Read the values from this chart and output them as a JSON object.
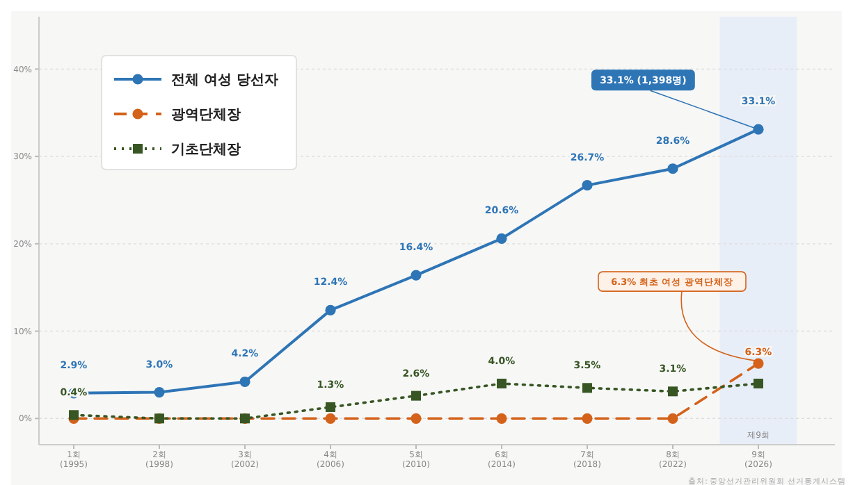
{
  "chart_data": {
    "type": "line",
    "categories": [
      "1회\n(1995)",
      "2회\n(1998)",
      "3회\n(2002)",
      "4회\n(2006)",
      "5회\n(2010)",
      "6회\n(2014)",
      "7회\n(2018)",
      "8회\n(2022)",
      "9회\n(2026)"
    ],
    "series": [
      {
        "name": "전체 여성 당선자",
        "color": "#2e75b6",
        "marker": "circle",
        "line_style": "solid",
        "values": [
          2.9,
          3.0,
          4.2,
          12.4,
          16.4,
          20.6,
          26.7,
          28.6,
          33.1
        ],
        "value_labels": [
          "2.9%",
          "3.0%",
          "4.2%",
          "12.4%",
          "16.4%",
          "20.6%",
          "26.7%",
          "28.6%",
          "33.1%"
        ]
      },
      {
        "name": "광역단체장",
        "color": "#d4621a",
        "marker": "circle",
        "line_style": "dashed",
        "values": [
          0,
          0,
          0,
          0,
          0,
          0,
          0,
          0,
          6.3
        ],
        "value_labels": [
          null,
          null,
          null,
          null,
          null,
          null,
          null,
          null,
          "6.3%"
        ]
      },
      {
        "name": "기초단체장",
        "color": "#375623",
        "marker": "square",
        "line_style": "dotted",
        "values": [
          0.4,
          0,
          0,
          1.3,
          2.6,
          4.0,
          3.5,
          3.1,
          4.0
        ],
        "value_labels": [
          "0.4%",
          null,
          null,
          "1.3%",
          "2.6%",
          "4.0%",
          "3.5%",
          "3.1%",
          null
        ]
      }
    ],
    "ylim": [
      -3,
      46
    ],
    "yticks": [
      {
        "value": 0,
        "label": "0%"
      },
      {
        "value": 10,
        "label": "10%"
      },
      {
        "value": 20,
        "label": "20%"
      },
      {
        "value": 30,
        "label": "30%"
      },
      {
        "value": 40,
        "label": "40%"
      }
    ],
    "grid": "y",
    "legend": "top left",
    "bands": [
      {
        "axis": "x",
        "from": "9회\n(2026)",
        "to": "9회\n(2026)",
        "label": "제9회",
        "color": "#e8eef8"
      }
    ],
    "annotations": [
      {
        "text": "33.1% (1,398명)",
        "x": "9회\n(2026)",
        "y": 33.1
      },
      {
        "text": "6.3% 최초 여성 광역단체장",
        "x": "9회\n(2026)",
        "y": 6.3
      },
      "출처: 중앙선거관리위원회 선거통계시스템"
    ]
  }
}
